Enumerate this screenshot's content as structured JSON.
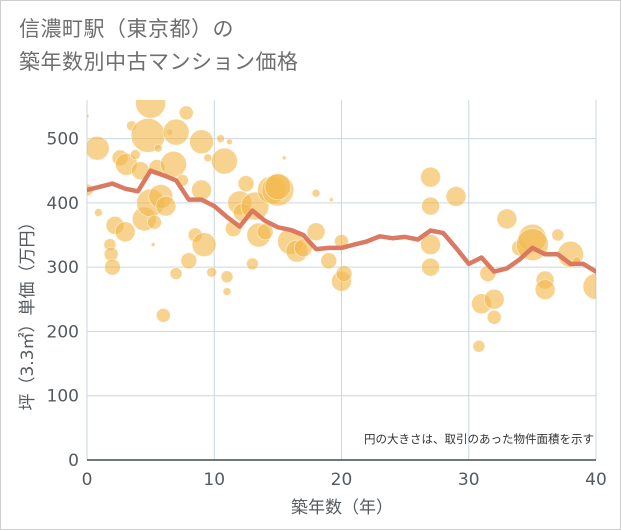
{
  "title": {
    "line1": "信濃町駅（東京都）の",
    "line2": "築年数別中古マンション価格"
  },
  "chart_data": {
    "type": "scatter",
    "title": "信濃町駅（東京都）の築年数別中古マンション価格",
    "xlabel": "築年数（年）",
    "ylabel": "坪（3.3㎡）単価（万円）",
    "xlim": [
      0,
      40
    ],
    "ylim": [
      0,
      560
    ],
    "x_ticks": [
      0,
      10,
      20,
      30,
      40
    ],
    "y_ticks": [
      0,
      100,
      200,
      300,
      400,
      500
    ],
    "grid": true,
    "note": "円の大きさは、取引のあった物件面積を示す",
    "colors": {
      "bubble": "#f2b84b",
      "line": "#d9735b",
      "grid": "#c9d6e1"
    },
    "bubbles": [
      {
        "x": 0,
        "y": 535,
        "s": 2
      },
      {
        "x": 0,
        "y": 420,
        "s": 6
      },
      {
        "x": 0.8,
        "y": 485,
        "s": 12
      },
      {
        "x": 0.9,
        "y": 385,
        "s": 4
      },
      {
        "x": 1.8,
        "y": 335,
        "s": 6
      },
      {
        "x": 1.9,
        "y": 320,
        "s": 7
      },
      {
        "x": 2,
        "y": 300,
        "s": 8
      },
      {
        "x": 2.2,
        "y": 365,
        "s": 9
      },
      {
        "x": 2.6,
        "y": 470,
        "s": 8
      },
      {
        "x": 3,
        "y": 355,
        "s": 10
      },
      {
        "x": 3.1,
        "y": 460,
        "s": 11
      },
      {
        "x": 3.5,
        "y": 520,
        "s": 5
      },
      {
        "x": 3.8,
        "y": 475,
        "s": 5
      },
      {
        "x": 4,
        "y": 570,
        "s": 7
      },
      {
        "x": 4.2,
        "y": 450,
        "s": 9
      },
      {
        "x": 4.5,
        "y": 375,
        "s": 12
      },
      {
        "x": 4.8,
        "y": 505,
        "s": 17
      },
      {
        "x": 5,
        "y": 555,
        "s": 15
      },
      {
        "x": 5,
        "y": 400,
        "s": 14
      },
      {
        "x": 5.2,
        "y": 335,
        "s": 2
      },
      {
        "x": 5.3,
        "y": 370,
        "s": 7
      },
      {
        "x": 5.5,
        "y": 455,
        "s": 8
      },
      {
        "x": 5.6,
        "y": 485,
        "s": 4
      },
      {
        "x": 5.8,
        "y": 410,
        "s": 12
      },
      {
        "x": 6,
        "y": 225,
        "s": 7
      },
      {
        "x": 6.2,
        "y": 395,
        "s": 10
      },
      {
        "x": 6.5,
        "y": 510,
        "s": 3
      },
      {
        "x": 6.8,
        "y": 460,
        "s": 13
      },
      {
        "x": 7,
        "y": 510,
        "s": 13
      },
      {
        "x": 7,
        "y": 290,
        "s": 6
      },
      {
        "x": 7.5,
        "y": 435,
        "s": 6
      },
      {
        "x": 7.8,
        "y": 540,
        "s": 7
      },
      {
        "x": 8,
        "y": 310,
        "s": 8
      },
      {
        "x": 8.5,
        "y": 350,
        "s": 7
      },
      {
        "x": 9,
        "y": 495,
        "s": 12
      },
      {
        "x": 9,
        "y": 420,
        "s": 10
      },
      {
        "x": 9.2,
        "y": 335,
        "s": 12
      },
      {
        "x": 9.5,
        "y": 470,
        "s": 4
      },
      {
        "x": 9.8,
        "y": 292,
        "s": 5
      },
      {
        "x": 10.5,
        "y": 500,
        "s": 4
      },
      {
        "x": 10.8,
        "y": 465,
        "s": 13
      },
      {
        "x": 11,
        "y": 285,
        "s": 6
      },
      {
        "x": 11,
        "y": 262,
        "s": 4
      },
      {
        "x": 11.2,
        "y": 495,
        "s": 3
      },
      {
        "x": 11.5,
        "y": 360,
        "s": 8
      },
      {
        "x": 12,
        "y": 400,
        "s": 12
      },
      {
        "x": 12.2,
        "y": 385,
        "s": 9
      },
      {
        "x": 12.5,
        "y": 430,
        "s": 8
      },
      {
        "x": 13,
        "y": 305,
        "s": 6
      },
      {
        "x": 13.2,
        "y": 395,
        "s": 14
      },
      {
        "x": 13.5,
        "y": 350,
        "s": 12
      },
      {
        "x": 14,
        "y": 355,
        "s": 8
      },
      {
        "x": 14.5,
        "y": 420,
        "s": 14
      },
      {
        "x": 15,
        "y": 420,
        "s": 16
      },
      {
        "x": 15,
        "y": 425,
        "s": 13
      },
      {
        "x": 15.5,
        "y": 470,
        "s": 2
      },
      {
        "x": 16,
        "y": 340,
        "s": 13
      },
      {
        "x": 16.5,
        "y": 325,
        "s": 11
      },
      {
        "x": 17,
        "y": 330,
        "s": 9
      },
      {
        "x": 18,
        "y": 415,
        "s": 4
      },
      {
        "x": 18,
        "y": 355,
        "s": 9
      },
      {
        "x": 19,
        "y": 310,
        "s": 8
      },
      {
        "x": 19.2,
        "y": 405,
        "s": 2
      },
      {
        "x": 20,
        "y": 340,
        "s": 7
      },
      {
        "x": 20,
        "y": 278,
        "s": 10
      },
      {
        "x": 20.2,
        "y": 290,
        "s": 8
      },
      {
        "x": 27,
        "y": 440,
        "s": 10
      },
      {
        "x": 27,
        "y": 395,
        "s": 9
      },
      {
        "x": 27,
        "y": 335,
        "s": 10
      },
      {
        "x": 27,
        "y": 300,
        "s": 9
      },
      {
        "x": 29,
        "y": 410,
        "s": 10
      },
      {
        "x": 30.8,
        "y": 177,
        "s": 6
      },
      {
        "x": 31,
        "y": 243,
        "s": 10
      },
      {
        "x": 31.5,
        "y": 290,
        "s": 8
      },
      {
        "x": 32,
        "y": 250,
        "s": 10
      },
      {
        "x": 32,
        "y": 222,
        "s": 7
      },
      {
        "x": 33,
        "y": 375,
        "s": 10
      },
      {
        "x": 34,
        "y": 330,
        "s": 8
      },
      {
        "x": 35,
        "y": 345,
        "s": 14
      },
      {
        "x": 35,
        "y": 335,
        "s": 16
      },
      {
        "x": 36,
        "y": 280,
        "s": 9
      },
      {
        "x": 36,
        "y": 265,
        "s": 10
      },
      {
        "x": 37,
        "y": 350,
        "s": 6
      },
      {
        "x": 38,
        "y": 320,
        "s": 13
      },
      {
        "x": 38.5,
        "y": 310,
        "s": 4
      },
      {
        "x": 40,
        "y": 270,
        "s": 13
      }
    ],
    "trend": {
      "x": [
        0,
        1,
        2,
        3,
        4,
        5,
        6,
        7,
        8,
        9,
        10,
        11,
        12,
        13,
        14,
        15,
        16,
        17,
        18,
        19,
        20,
        21,
        22,
        23,
        24,
        25,
        26,
        27,
        28,
        29,
        30,
        31,
        32,
        33,
        34,
        35,
        36,
        37,
        38,
        39,
        40
      ],
      "y": [
        420,
        425,
        430,
        422,
        418,
        450,
        443,
        435,
        405,
        405,
        395,
        378,
        363,
        388,
        372,
        362,
        358,
        350,
        328,
        330,
        330,
        335,
        340,
        348,
        345,
        347,
        343,
        357,
        353,
        330,
        305,
        315,
        293,
        298,
        312,
        330,
        320,
        320,
        305,
        305,
        293
      ]
    }
  }
}
